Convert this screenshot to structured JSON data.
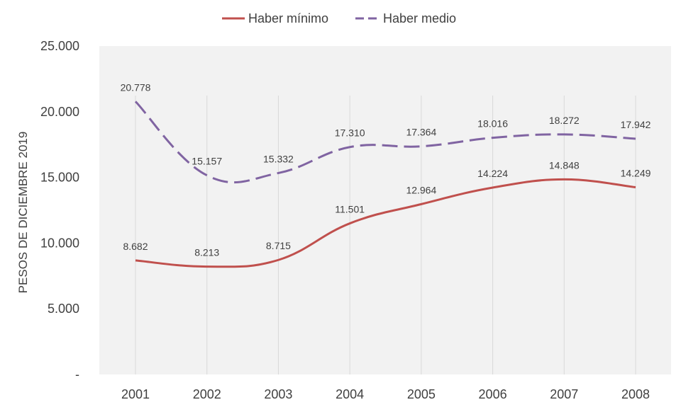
{
  "chart_data": {
    "type": "line",
    "title": "",
    "xlabel": "",
    "ylabel": "PESOS DE DICIEMBRE 2019",
    "categories": [
      "2001",
      "2002",
      "2003",
      "2004",
      "2005",
      "2006",
      "2007",
      "2008"
    ],
    "ylim": [
      0,
      25000
    ],
    "yticks": [
      0,
      5000,
      10000,
      15000,
      20000,
      25000
    ],
    "ytick_labels": [
      "-",
      "5.000",
      "10.000",
      "15.000",
      "20.000",
      "25.000"
    ],
    "grid": "vertical lines at categories",
    "legend_position": "top-center",
    "series": [
      {
        "name": "Haber mínimo",
        "color": "#c0504d",
        "style": "solid",
        "values": [
          8682,
          8213,
          8715,
          11501,
          12964,
          14224,
          14848,
          14249
        ],
        "labels": [
          "8.682",
          "8.213",
          "8.715",
          "11.501",
          "12.964",
          "14.224",
          "14.848",
          "14.249"
        ]
      },
      {
        "name": "Haber medio",
        "color": "#8064a2",
        "style": "dashed",
        "values": [
          20778,
          15157,
          15332,
          17310,
          17364,
          18016,
          18272,
          17942
        ],
        "labels": [
          "20.778",
          "15.157",
          "15.332",
          "17.310",
          "17.364",
          "18.016",
          "18.272",
          "17.942"
        ]
      }
    ]
  },
  "colors": {
    "plot_background": "#f2f2f2",
    "gridline": "#d9d9d9",
    "axis_text": "#404040",
    "label_text": "#404040"
  }
}
